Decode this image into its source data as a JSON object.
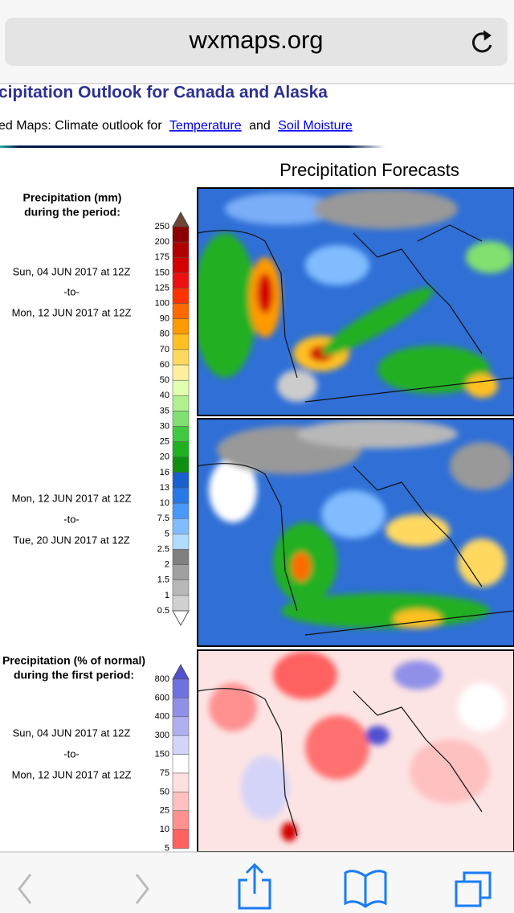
{
  "browser": {
    "url": "wxmaps.org"
  },
  "page": {
    "title": "cipitation Outlook for Canada and Alaska",
    "nav": {
      "text": "ed Maps: Climate outlook for",
      "link1": "Temperature",
      "joiner": "and",
      "link2": "Soil Moisture"
    },
    "forecast_heading": "Precipitation Forecasts",
    "legend_mm": {
      "title": "Precipitation (mm)",
      "subtitle": "during the period:",
      "levels": [
        {
          "label": 250,
          "color": "#6b4536"
        },
        {
          "label": 200,
          "color": "#8b0000"
        },
        {
          "label": 175,
          "color": "#b00000"
        },
        {
          "label": 150,
          "color": "#d40000"
        },
        {
          "label": 125,
          "color": "#ee1010"
        },
        {
          "label": 100,
          "color": "#ff3300"
        },
        {
          "label": 90,
          "color": "#ff6a00"
        },
        {
          "label": 80,
          "color": "#ff9a00"
        },
        {
          "label": 70,
          "color": "#ffc020"
        },
        {
          "label": 60,
          "color": "#ffd860"
        },
        {
          "label": 50,
          "color": "#fff0a0"
        },
        {
          "label": 40,
          "color": "#e0ffb0"
        },
        {
          "label": 35,
          "color": "#b0f090"
        },
        {
          "label": 30,
          "color": "#80e070"
        },
        {
          "label": 25,
          "color": "#40c840"
        },
        {
          "label": 20,
          "color": "#20b020"
        },
        {
          "label": 16,
          "color": "#109010"
        },
        {
          "label": 13,
          "color": "#1a5fd0"
        },
        {
          "label": 10,
          "color": "#2878e8"
        },
        {
          "label": 7.5,
          "color": "#4a98f8"
        },
        {
          "label": 5,
          "color": "#80bcff"
        },
        {
          "label": 2.5,
          "color": "#b0dcff"
        },
        {
          "label": 2,
          "color": "#808080"
        },
        {
          "label": 1.5,
          "color": "#a0a0a0"
        },
        {
          "label": 1,
          "color": "#b8b8b8"
        },
        {
          "label": 0.5,
          "color": "#d0d0d0"
        }
      ]
    },
    "legend_pct": {
      "title": "Precipitation (% of normal)",
      "subtitle": "during the first period:",
      "levels": [
        {
          "label": 800,
          "color": "#5050d0"
        },
        {
          "label": 600,
          "color": "#7070e0"
        },
        {
          "label": 400,
          "color": "#9090e8"
        },
        {
          "label": 300,
          "color": "#b0b0f0"
        },
        {
          "label": 150,
          "color": "#d4d4f8"
        },
        {
          "label": 75,
          "color": "#ffffff"
        },
        {
          "label": 50,
          "color": "#ffe0e0"
        },
        {
          "label": 25,
          "color": "#ffc0c0"
        },
        {
          "label": 10,
          "color": "#ff9090"
        },
        {
          "label": 5,
          "color": "#ff6060"
        }
      ]
    },
    "periods": [
      {
        "start": "Sun, 04 JUN 2017 at 12Z",
        "sep": "-to-",
        "end": "Mon, 12 JUN 2017 at 12Z"
      },
      {
        "start": "Mon, 12 JUN 2017 at 12Z",
        "sep": "-to-",
        "end": "Tue, 20 JUN 2017 at 12Z"
      },
      {
        "start": "Sun, 04 JUN 2017 at 12Z",
        "sep": "-to-",
        "end": "Mon, 12 JUN 2017 at 12Z"
      }
    ]
  }
}
